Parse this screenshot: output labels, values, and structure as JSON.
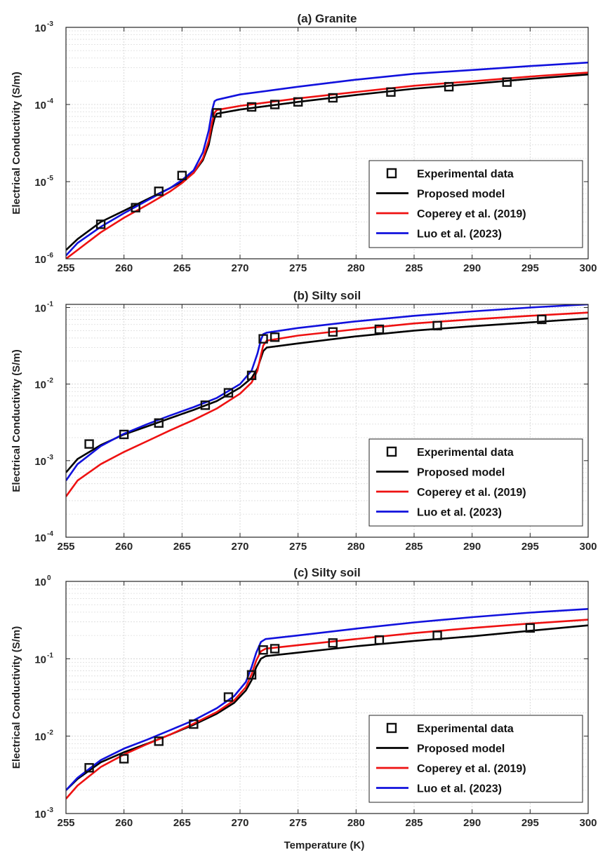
{
  "figure": {
    "xlabel": "Temperature (K)",
    "ylabel": "Electrical Conductivity (S/m)"
  },
  "colors": {
    "experimental": "#111111",
    "proposed": "#000000",
    "coperey": "#ee1111",
    "luo": "#1111dd"
  },
  "chart_data": [
    {
      "type": "line",
      "title": "(a) Granite",
      "xlabel": "",
      "ylabel": "Electrical Conductivity (S/m)",
      "xlim": [
        255,
        300
      ],
      "ylim": [
        1e-06,
        0.001
      ],
      "yscale": "log",
      "grid": true,
      "legend_position": "bottom-right",
      "xticks": [
        255,
        260,
        265,
        270,
        275,
        280,
        285,
        290,
        295,
        300
      ],
      "yticks": [
        -6,
        -5,
        -4,
        -3
      ],
      "series": [
        {
          "name": "Experimental data",
          "style": "markers",
          "x": [
            258,
            261,
            263,
            265,
            268,
            271,
            273,
            275,
            278,
            283,
            288,
            293
          ],
          "y": [
            2.8e-06,
            4.6e-06,
            7.5e-06,
            1.2e-05,
            7.8e-05,
            9.3e-05,
            0.0001,
            0.000108,
            0.000122,
            0.000145,
            0.00017,
            0.000195
          ]
        },
        {
          "name": "Proposed model",
          "style": "line",
          "x": [
            255,
            256,
            258,
            260,
            262,
            264,
            265,
            266,
            266.8,
            267.3,
            267.6,
            267.8,
            268,
            270,
            275,
            280,
            285,
            290,
            295,
            300
          ],
          "y": [
            1.3e-06,
            1.8e-06,
            3e-06,
            4.2e-06,
            5.9e-06,
            8.3e-06,
            1e-05,
            1.3e-05,
            1.9e-05,
            3e-05,
            5e-05,
            6.6e-05,
            7.6e-05,
            8.6e-05,
            0.000108,
            0.000133,
            0.00016,
            0.000185,
            0.000215,
            0.000245
          ]
        },
        {
          "name": "Coperey et al. (2019)",
          "style": "line",
          "x": [
            255,
            256,
            258,
            260,
            262,
            264,
            265,
            266,
            266.8,
            267.3,
            267.6,
            267.8,
            268,
            270,
            275,
            280,
            285,
            290,
            295,
            300
          ],
          "y": [
            1e-06,
            1.3e-06,
            2.2e-06,
            3.4e-06,
            5e-06,
            7.5e-06,
            9.6e-06,
            1.3e-05,
            2e-05,
            3.4e-05,
            6e-05,
            7.8e-05,
            8.5e-05,
            9.6e-05,
            0.00012,
            0.000145,
            0.000175,
            0.0002,
            0.00023,
            0.00026
          ]
        },
        {
          "name": "Luo et al. (2023)",
          "style": "line",
          "x": [
            255,
            256,
            258,
            260,
            262,
            264,
            265,
            266,
            266.8,
            267.3,
            267.6,
            267.8,
            268,
            270,
            275,
            280,
            285,
            290,
            295,
            300
          ],
          "y": [
            1.1e-06,
            1.6e-06,
            2.6e-06,
            3.9e-06,
            5.7e-06,
            8.3e-06,
            1.05e-05,
            1.4e-05,
            2.4e-05,
            4.6e-05,
            8.5e-05,
            0.00011,
            0.000115,
            0.000135,
            0.00017,
            0.00021,
            0.00025,
            0.00028,
            0.000315,
            0.00035
          ]
        }
      ]
    },
    {
      "type": "line",
      "title": "(b) Silty soil",
      "xlabel": "",
      "ylabel": "Electrical Conductivity (S/m)",
      "xlim": [
        255,
        300
      ],
      "ylim": [
        0.0001,
        0.11
      ],
      "yscale": "log",
      "grid": true,
      "legend_position": "bottom-right",
      "xticks": [
        255,
        260,
        265,
        270,
        275,
        280,
        285,
        290,
        295,
        300
      ],
      "yticks": [
        -4,
        -3,
        -2,
        -1
      ],
      "series": [
        {
          "name": "Experimental data",
          "style": "markers",
          "x": [
            257,
            260,
            263,
            267,
            269,
            271,
            272,
            273,
            278,
            282,
            287,
            296
          ],
          "y": [
            0.00165,
            0.0022,
            0.0031,
            0.0053,
            0.0077,
            0.013,
            0.039,
            0.041,
            0.048,
            0.052,
            0.058,
            0.07
          ]
        },
        {
          "name": "Proposed model",
          "style": "line",
          "x": [
            255,
            256,
            258,
            260,
            262,
            264,
            266,
            268,
            270,
            271,
            271.5,
            271.8,
            272,
            272.3,
            275,
            280,
            285,
            290,
            295,
            300
          ],
          "y": [
            0.0007,
            0.00105,
            0.0016,
            0.0022,
            0.0028,
            0.0036,
            0.0046,
            0.006,
            0.009,
            0.012,
            0.016,
            0.022,
            0.027,
            0.03,
            0.034,
            0.042,
            0.05,
            0.057,
            0.064,
            0.072
          ]
        },
        {
          "name": "Coperey et al. (2019)",
          "style": "line",
          "x": [
            255,
            256,
            258,
            260,
            262,
            264,
            266,
            268,
            270,
            271,
            271.5,
            271.8,
            272,
            272.3,
            275,
            280,
            285,
            290,
            295,
            300
          ],
          "y": [
            0.00034,
            0.00055,
            0.0009,
            0.0013,
            0.0018,
            0.0025,
            0.0034,
            0.0048,
            0.0075,
            0.0105,
            0.015,
            0.024,
            0.032,
            0.037,
            0.043,
            0.052,
            0.062,
            0.07,
            0.078,
            0.086
          ]
        },
        {
          "name": "Luo et al. (2023)",
          "style": "line",
          "x": [
            255,
            256,
            258,
            260,
            262,
            264,
            266,
            268,
            270,
            271,
            271.5,
            271.8,
            272,
            272.3,
            275,
            280,
            285,
            290,
            295,
            300
          ],
          "y": [
            0.00055,
            0.0009,
            0.00155,
            0.00225,
            0.003,
            0.0039,
            0.005,
            0.0066,
            0.01,
            0.015,
            0.025,
            0.038,
            0.045,
            0.047,
            0.054,
            0.066,
            0.078,
            0.089,
            0.1,
            0.11
          ]
        }
      ]
    },
    {
      "type": "line",
      "title": "(c) Silty soil",
      "xlabel": "Temperature (K)",
      "ylabel": "Electrical Conductivity (S/m)",
      "xlim": [
        255,
        300
      ],
      "ylim": [
        0.001,
        1
      ],
      "yscale": "log",
      "grid": true,
      "legend_position": "bottom-right",
      "xticks": [
        255,
        260,
        265,
        270,
        275,
        280,
        285,
        290,
        295,
        300
      ],
      "yticks": [
        -3,
        -2,
        -1,
        0
      ],
      "series": [
        {
          "name": "Experimental data",
          "style": "markers",
          "x": [
            257,
            260,
            263,
            266,
            269,
            271,
            272,
            273,
            278,
            282,
            287,
            295
          ],
          "y": [
            0.0039,
            0.0051,
            0.0086,
            0.0143,
            0.032,
            0.062,
            0.13,
            0.135,
            0.16,
            0.175,
            0.2,
            0.25
          ]
        },
        {
          "name": "Proposed model",
          "style": "line",
          "x": [
            255,
            256,
            258,
            260,
            262,
            264,
            266,
            268,
            269.5,
            270.5,
            271,
            271.4,
            271.8,
            272.2,
            275,
            280,
            285,
            290,
            295,
            300
          ],
          "y": [
            0.002,
            0.0028,
            0.0046,
            0.0062,
            0.008,
            0.0105,
            0.014,
            0.0195,
            0.027,
            0.039,
            0.053,
            0.078,
            0.1,
            0.108,
            0.12,
            0.145,
            0.17,
            0.195,
            0.23,
            0.27
          ]
        },
        {
          "name": "Coperey et al. (2019)",
          "style": "line",
          "x": [
            255,
            256,
            258,
            260,
            262,
            264,
            266,
            268,
            269.5,
            270.5,
            271,
            271.4,
            271.8,
            272.2,
            275,
            280,
            285,
            290,
            295,
            300
          ],
          "y": [
            0.00155,
            0.0023,
            0.004,
            0.0058,
            0.0079,
            0.0105,
            0.0145,
            0.0205,
            0.029,
            0.043,
            0.063,
            0.095,
            0.125,
            0.135,
            0.15,
            0.18,
            0.215,
            0.25,
            0.285,
            0.32
          ]
        },
        {
          "name": "Luo et al. (2023)",
          "style": "line",
          "x": [
            255,
            256,
            258,
            260,
            262,
            264,
            266,
            268,
            269.5,
            270.5,
            271,
            271.4,
            271.8,
            272.2,
            275,
            280,
            285,
            290,
            295,
            300
          ],
          "y": [
            0.002,
            0.0029,
            0.0049,
            0.0069,
            0.009,
            0.012,
            0.016,
            0.023,
            0.033,
            0.05,
            0.078,
            0.12,
            0.165,
            0.18,
            0.2,
            0.245,
            0.295,
            0.345,
            0.395,
            0.44
          ]
        }
      ]
    }
  ]
}
